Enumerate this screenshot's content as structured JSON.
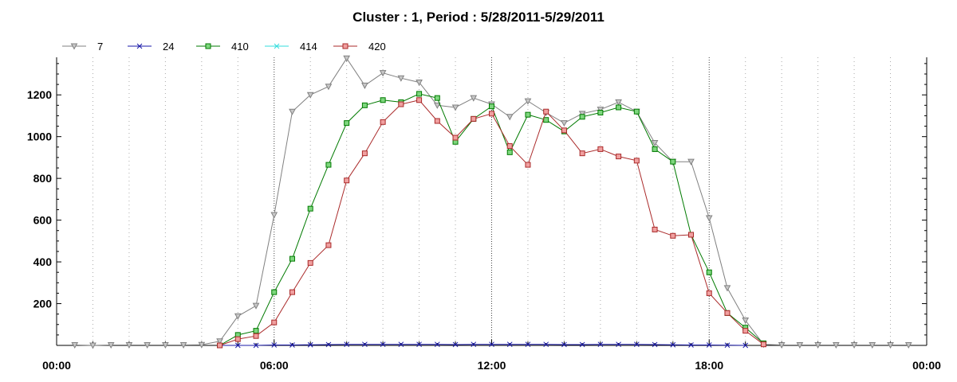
{
  "chart_data": {
    "type": "line",
    "title": "Cluster : 1, Period : 5/28/2011-5/29/2011",
    "xlabel": "",
    "ylabel": "",
    "x_unit": "hours",
    "x_ticks": [
      {
        "value": 0,
        "label": "00:00"
      },
      {
        "value": 6,
        "label": "06:00"
      },
      {
        "value": 12,
        "label": "12:00"
      },
      {
        "value": 18,
        "label": "18:00"
      },
      {
        "value": 24,
        "label": "00:00"
      }
    ],
    "y_ticks": [
      200,
      400,
      600,
      800,
      1000,
      1200
    ],
    "xlim": [
      0,
      24
    ],
    "ylim": [
      0,
      1380
    ],
    "grid": "vertical dotted",
    "legend_position": "top-left",
    "series": [
      {
        "name": "7",
        "color": "#808080",
        "marker": "triangle-down",
        "x": [
          0.5,
          1,
          1.5,
          2,
          2.5,
          3,
          3.5,
          4,
          4.5,
          5,
          5.5,
          6,
          6.5,
          7,
          7.5,
          8,
          8.5,
          9,
          9.5,
          10,
          10.5,
          11,
          11.5,
          12,
          12.5,
          13,
          13.5,
          14,
          14.5,
          15,
          15.5,
          16,
          16.5,
          17,
          17.5,
          18,
          18.5,
          19,
          19.5,
          20,
          20.5,
          21,
          21.5,
          22,
          22.5,
          23,
          23.5
        ],
        "y": [
          2,
          0,
          2,
          2,
          2,
          2,
          2,
          3,
          20,
          140,
          190,
          625,
          1120,
          1200,
          1240,
          1375,
          1245,
          1305,
          1280,
          1260,
          1150,
          1140,
          1185,
          1155,
          1095,
          1170,
          1115,
          1065,
          1110,
          1130,
          1165,
          1120,
          970,
          880,
          880,
          610,
          275,
          120,
          5,
          2,
          2,
          2,
          2,
          2,
          2,
          2,
          2
        ]
      },
      {
        "name": "24",
        "color": "#1a1aa8",
        "marker": "x",
        "x": [
          4.5,
          5,
          5.5,
          6,
          6.5,
          7,
          7.5,
          8,
          8.5,
          9,
          9.5,
          10,
          10.5,
          11,
          11.5,
          12,
          12.5,
          13,
          13.5,
          14,
          14.5,
          15,
          15.5,
          16,
          16.5,
          17,
          17.5,
          18,
          18.5,
          19
        ],
        "y": [
          0,
          0,
          0,
          2,
          2,
          3,
          4,
          5,
          5,
          5,
          5,
          5,
          5,
          4,
          5,
          5,
          5,
          5,
          5,
          4,
          4,
          5,
          5,
          5,
          4,
          3,
          2,
          2,
          1,
          0
        ]
      },
      {
        "name": "410",
        "color": "#007a00",
        "marker": "square",
        "marker_fill": "#7ed67e",
        "x": [
          4.5,
          5,
          5.5,
          6,
          6.5,
          7,
          7.5,
          8,
          8.5,
          9,
          9.5,
          10,
          10.5,
          11,
          11.5,
          12,
          12.5,
          13,
          13.5,
          14,
          14.5,
          15,
          15.5,
          16,
          16.5,
          17,
          17.5,
          18,
          18.5,
          19,
          19.5
        ],
        "y": [
          0,
          50,
          70,
          255,
          415,
          655,
          865,
          1065,
          1150,
          1175,
          1165,
          1205,
          1185,
          975,
          1085,
          1145,
          925,
          1105,
          1080,
          1025,
          1095,
          1115,
          1140,
          1120,
          940,
          880,
          530,
          350,
          155,
          85,
          10
        ]
      },
      {
        "name": "414",
        "color": "#33dddd",
        "marker": "x",
        "x": [],
        "y": []
      },
      {
        "name": "420",
        "color": "#aa2a2a",
        "marker": "square",
        "marker_fill": "#f0a0a0",
        "x": [
          4.5,
          5,
          5.5,
          6,
          6.5,
          7,
          7.5,
          8,
          8.5,
          9,
          9.5,
          10,
          10.5,
          11,
          11.5,
          12,
          12.5,
          13,
          13.5,
          14,
          14.5,
          15,
          15.5,
          16,
          16.5,
          17,
          17.5,
          18,
          18.5,
          19,
          19.5
        ],
        "y": [
          0,
          30,
          45,
          110,
          255,
          395,
          480,
          790,
          920,
          1070,
          1155,
          1175,
          1075,
          995,
          1085,
          1110,
          955,
          865,
          1120,
          1030,
          920,
          940,
          905,
          885,
          555,
          525,
          530,
          250,
          155,
          70,
          5
        ]
      }
    ]
  }
}
